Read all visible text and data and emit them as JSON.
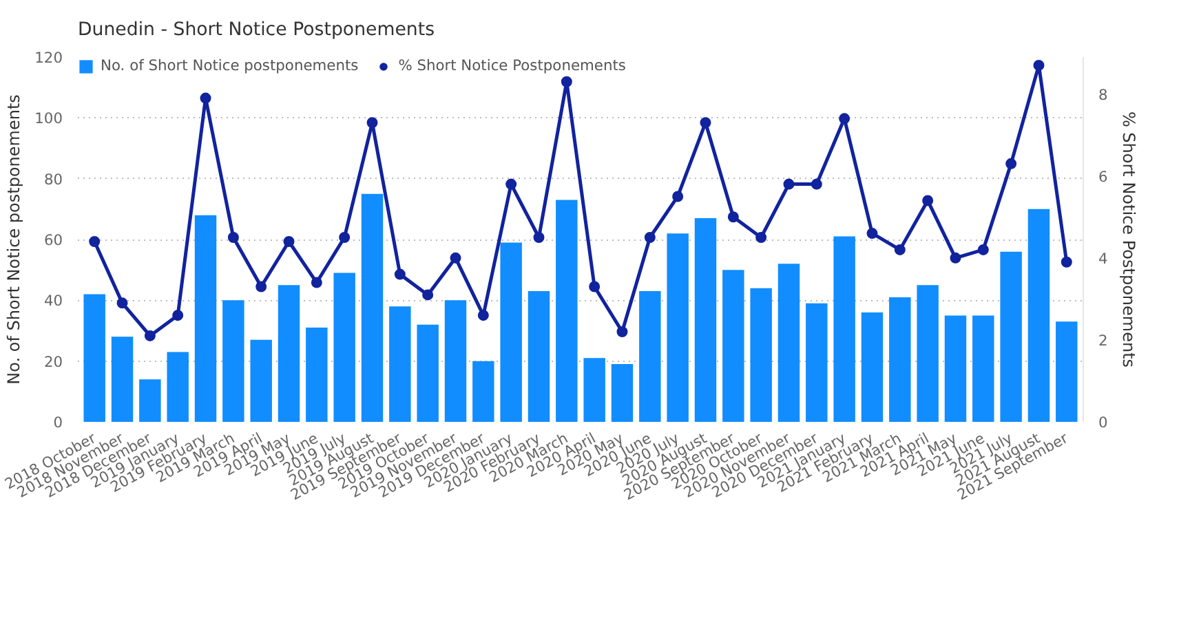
{
  "chart_data": {
    "type": "bar",
    "title": "Dunedin - Short Notice Postponements",
    "ylabel": "No. of Short Notice postponements",
    "y2label": "% Short Notice Postponements",
    "categories": [
      "2018 October",
      "2018 November",
      "2018 December",
      "2019 January",
      "2019 February",
      "2019 March",
      "2019 April",
      "2019 May",
      "2019 June",
      "2019 July",
      "2019 August",
      "2019 September",
      "2019 October",
      "2019 November",
      "2019 December",
      "2020 January",
      "2020 February",
      "2020 March",
      "2020 April",
      "2020 May",
      "2020 June",
      "2020 July",
      "2020 August",
      "2020 September",
      "2020 October",
      "2020 November",
      "2020 December",
      "2021 January",
      "2021 February",
      "2021 March",
      "2021 April",
      "2021 May",
      "2021 June",
      "2021 July",
      "2021 August",
      "2021 September"
    ],
    "series": [
      {
        "name": "No. of Short Notice postponements",
        "color": "#118dff",
        "values": [
          42,
          28,
          14,
          23,
          68,
          40,
          27,
          45,
          31,
          49,
          75,
          38,
          32,
          40,
          20,
          59,
          43,
          73,
          21,
          19,
          43,
          62,
          67,
          50,
          44,
          52,
          39,
          61,
          36,
          41,
          45,
          35,
          35,
          56,
          70,
          33
        ]
      },
      {
        "name": "% Short Notice Postponements",
        "type": "line",
        "axis": "y2",
        "color": "#12239e",
        "marker": "circle",
        "values": [
          4.4,
          2.9,
          2.1,
          2.6,
          7.9,
          4.5,
          3.3,
          4.4,
          3.4,
          4.5,
          7.3,
          3.6,
          3.1,
          4.0,
          2.6,
          5.8,
          4.5,
          8.3,
          3.3,
          2.2,
          4.5,
          5.5,
          7.3,
          5.0,
          4.5,
          5.8,
          5.8,
          7.4,
          4.6,
          4.2,
          5.4,
          4.0,
          4.2,
          6.3,
          8.7,
          3.9
        ]
      }
    ],
    "ylim": [
      0,
      120
    ],
    "yticks": [
      0,
      20,
      40,
      60,
      80,
      100,
      120
    ],
    "y2lim": [
      0,
      8.9
    ],
    "y2ticks": [
      0,
      2,
      4,
      6,
      8
    ],
    "grid": "y",
    "legend": "top left"
  }
}
